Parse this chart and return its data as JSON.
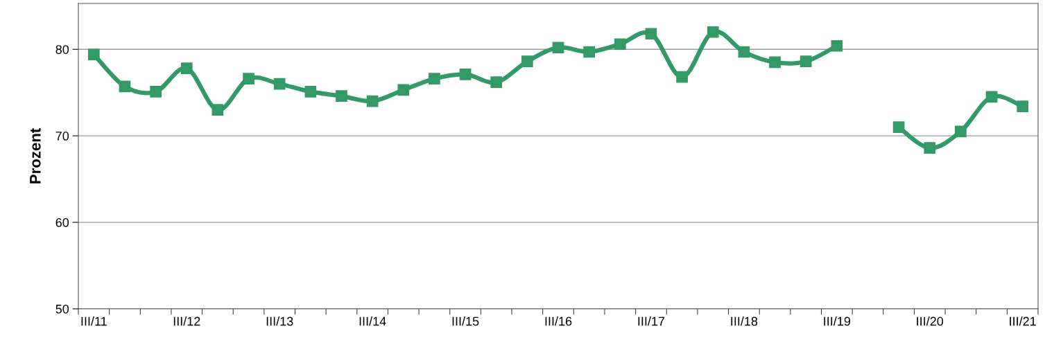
{
  "chart_data": {
    "type": "line",
    "ylabel": "Prozent",
    "categories": [
      "III/11",
      null,
      null,
      "III/12",
      null,
      null,
      "III/13",
      null,
      null,
      "III/14",
      null,
      null,
      "III/15",
      null,
      null,
      "III/16",
      null,
      null,
      "III/17",
      null,
      null,
      "III/18",
      null,
      null,
      "III/19",
      null,
      null,
      "III/20",
      null,
      null,
      "III/21"
    ],
    "series": [
      {
        "color": "#339966",
        "values": [
          79.4,
          75.7,
          75.1,
          77.8,
          73.0,
          76.6,
          76.0,
          75.1,
          74.6,
          74.0,
          75.3,
          76.6,
          77.1,
          76.2,
          78.6,
          80.2,
          79.7,
          80.6,
          81.8,
          76.8,
          82.0,
          79.7,
          78.5,
          78.6,
          80.4,
          null,
          71.0,
          68.6,
          70.5,
          74.5,
          73.4
        ]
      }
    ],
    "ylim": [
      50,
      85.3
    ],
    "yticks": [
      50,
      60,
      70,
      80
    ],
    "grid": "y",
    "marker": "square",
    "line_style": "solid",
    "legend": false
  }
}
